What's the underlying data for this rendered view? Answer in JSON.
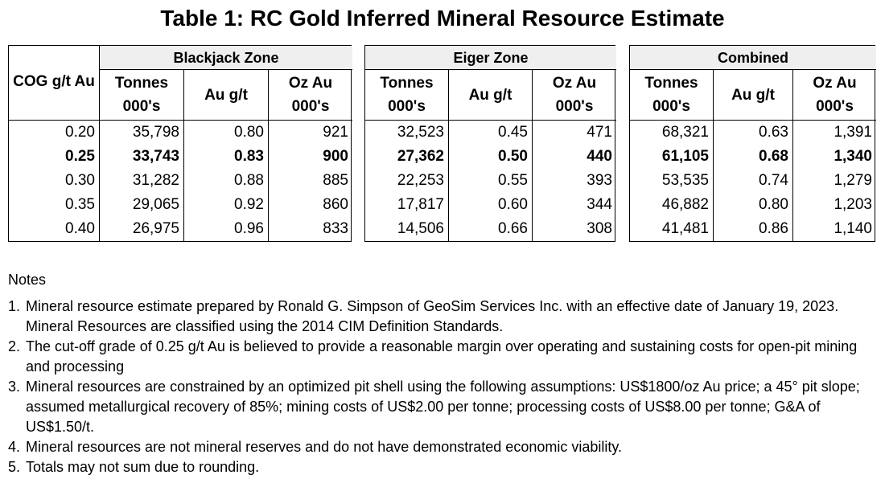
{
  "title": "Table 1: RC Gold Inferred Mineral Resource Estimate",
  "table": {
    "cog_header": "COG g/t Au",
    "cog": [
      "0.20",
      "0.25",
      "0.30",
      "0.35",
      "0.40"
    ],
    "groups": [
      {
        "name": "Blackjack Zone",
        "columns": [
          [
            "Tonnes",
            "000's"
          ],
          [
            "Au g/t"
          ],
          [
            "Oz Au",
            "000's"
          ]
        ],
        "rows": [
          [
            "35,798",
            "0.80",
            "921"
          ],
          [
            "33,743",
            "0.83",
            "900"
          ],
          [
            "31,282",
            "0.88",
            "885"
          ],
          [
            "29,065",
            "0.92",
            "860"
          ],
          [
            "26,975",
            "0.96",
            "833"
          ]
        ]
      },
      {
        "name": "Eiger Zone",
        "columns": [
          [
            "Tonnes",
            "000's"
          ],
          [
            "Au g/t"
          ],
          [
            "Oz Au",
            "000's"
          ]
        ],
        "rows": [
          [
            "32,523",
            "0.45",
            "471"
          ],
          [
            "27,362",
            "0.50",
            "440"
          ],
          [
            "22,253",
            "0.55",
            "393"
          ],
          [
            "17,817",
            "0.60",
            "344"
          ],
          [
            "14,506",
            "0.66",
            "308"
          ]
        ]
      },
      {
        "name": "Combined",
        "columns": [
          [
            "Tonnes",
            "000's"
          ],
          [
            "Au g/t"
          ],
          [
            "Oz Au",
            "000's"
          ]
        ],
        "rows": [
          [
            "68,321",
            "0.63",
            "1,391"
          ],
          [
            "61,105",
            "0.68",
            "1,340"
          ],
          [
            "53,535",
            "0.74",
            "1,279"
          ],
          [
            "46,882",
            "0.80",
            "1,203"
          ],
          [
            "41,481",
            "0.86",
            "1,140"
          ]
        ]
      }
    ]
  },
  "notes": {
    "title": "Notes",
    "items": [
      {
        "number": "1.",
        "text": "Mineral resource estimate prepared by Ronald G. Simpson of GeoSim Services Inc. with an effective date of January 19, 2023. Mineral Resources are classified using the 2014 CIM Definition Standards."
      },
      {
        "number": "2.",
        "text": "The cut-off grade of 0.25 g/t Au is believed to provide a reasonable margin over operating and sustaining costs for open-pit mining and processing"
      },
      {
        "number": "3.",
        "text": "Mineral resources are constrained by an optimized pit shell using the following assumptions: US$1800/oz Au price; a 45° pit slope; assumed metallurgical recovery of 85%; mining costs of US$2.00 per tonne; processing costs of US$8.00 per tonne; G&A of US$1.50/t."
      },
      {
        "number": "4.",
        "text": "Mineral resources are not mineral reserves and do not have demonstrated economic viability."
      },
      {
        "number": "5.",
        "text": "Totals may not sum due to rounding."
      }
    ]
  }
}
